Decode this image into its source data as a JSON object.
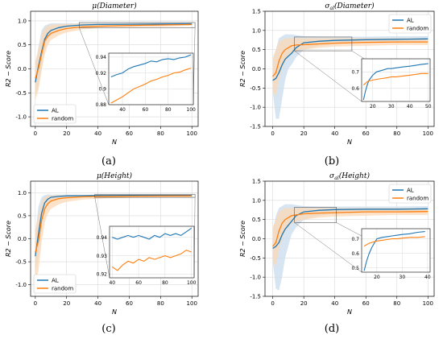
{
  "colors": {
    "al": "#1f77b4",
    "random": "#ff7f0e",
    "al_band": "#c9dcee",
    "random_band": "#fbd8b6",
    "grid": "#d9d9d9"
  },
  "panels": [
    {
      "letter": "(a)"
    },
    {
      "letter": "(b)"
    },
    {
      "letter": "(c)"
    },
    {
      "letter": "(d)"
    }
  ],
  "chart_data": [
    {
      "type": "line",
      "title": "μ(Diameter)",
      "xlabel": "N",
      "ylabel": "R2 − Score",
      "xlim": [
        -3,
        104
      ],
      "ylim": [
        -1.2,
        1.2
      ],
      "xticks": [
        0,
        20,
        40,
        60,
        80,
        100
      ],
      "yticks": [
        -1.0,
        -0.5,
        0.0,
        0.5,
        1.0
      ],
      "grid": true,
      "legend": "lower-left",
      "series": [
        {
          "name": "AL",
          "x": [
            0,
            2,
            4,
            6,
            8,
            10,
            15,
            20,
            30,
            40,
            60,
            80,
            100
          ],
          "y": [
            -0.28,
            0.05,
            0.35,
            0.62,
            0.74,
            0.8,
            0.86,
            0.89,
            0.915,
            0.925,
            0.93,
            0.935,
            0.94
          ],
          "lo": [
            -0.55,
            -0.35,
            0.0,
            0.4,
            0.6,
            0.7,
            0.82,
            0.87,
            0.9,
            0.91,
            0.92,
            0.925,
            0.93
          ],
          "hi": [
            0.1,
            0.45,
            0.8,
            0.9,
            0.93,
            0.95,
            0.95,
            0.95,
            0.95,
            0.95,
            0.95,
            0.955,
            0.955
          ]
        },
        {
          "name": "random",
          "x": [
            0,
            2,
            4,
            6,
            8,
            10,
            15,
            20,
            30,
            40,
            60,
            80,
            100
          ],
          "y": [
            -0.2,
            0.0,
            0.3,
            0.58,
            0.68,
            0.74,
            0.8,
            0.84,
            0.875,
            0.89,
            0.905,
            0.915,
            0.925
          ],
          "lo": [
            -0.65,
            -0.45,
            -0.05,
            0.3,
            0.5,
            0.6,
            0.7,
            0.76,
            0.82,
            0.85,
            0.87,
            0.88,
            0.9
          ],
          "hi": [
            0.15,
            0.4,
            0.7,
            0.85,
            0.9,
            0.92,
            0.93,
            0.94,
            0.94,
            0.945,
            0.95,
            0.95,
            0.95
          ]
        }
      ],
      "inset": {
        "xlim": [
          28,
          102
        ],
        "ylim": [
          0.88,
          0.945
        ],
        "xticks": [
          40,
          60,
          80,
          100
        ],
        "yticks": [
          0.88,
          0.9,
          0.92,
          0.94
        ],
        "series": [
          {
            "name": "AL",
            "x": [
              30,
              35,
              40,
              45,
              50,
              55,
              60,
              65,
              70,
              75,
              80,
              85,
              90,
              95,
              100
            ],
            "y": [
              0.915,
              0.918,
              0.92,
              0.925,
              0.928,
              0.93,
              0.932,
              0.935,
              0.934,
              0.937,
              0.938,
              0.937,
              0.939,
              0.94,
              0.943
            ]
          },
          {
            "name": "random",
            "x": [
              30,
              35,
              40,
              45,
              50,
              55,
              60,
              65,
              70,
              75,
              80,
              85,
              90,
              95,
              100
            ],
            "y": [
              0.882,
              0.886,
              0.89,
              0.895,
              0.9,
              0.903,
              0.906,
              0.91,
              0.912,
              0.915,
              0.917,
              0.92,
              0.921,
              0.924,
              0.926
            ]
          }
        ]
      }
    },
    {
      "type": "line",
      "title": "σ_al(Diameter)",
      "xlabel": "N",
      "ylabel": "R2 − Score",
      "xlim": [
        -5,
        104
      ],
      "ylim": [
        -1.5,
        1.5
      ],
      "xticks": [
        0,
        20,
        40,
        60,
        80,
        100
      ],
      "yticks": [
        -1.5,
        -1.0,
        -0.5,
        0.0,
        0.5,
        1.0,
        1.5
      ],
      "grid": true,
      "legend": "top-right",
      "series": [
        {
          "name": "AL",
          "x": [
            0,
            2,
            4,
            6,
            8,
            10,
            12,
            15,
            20,
            30,
            40,
            60,
            80,
            100
          ],
          "y": [
            -0.3,
            -0.25,
            -0.1,
            0.1,
            0.25,
            0.33,
            0.4,
            0.55,
            0.68,
            0.72,
            0.74,
            0.76,
            0.77,
            0.78
          ],
          "lo": [
            -0.6,
            -1.3,
            -1.3,
            -0.8,
            -0.3,
            0.0,
            0.1,
            0.3,
            0.5,
            0.6,
            0.65,
            0.68,
            0.7,
            0.72
          ],
          "hi": [
            0.2,
            0.5,
            0.8,
            0.85,
            0.9,
            0.9,
            0.9,
            0.88,
            0.85,
            0.84,
            0.84,
            0.84,
            0.85,
            0.85
          ]
        },
        {
          "name": "random",
          "x": [
            0,
            2,
            4,
            6,
            8,
            10,
            12,
            15,
            20,
            30,
            40,
            60,
            80,
            100
          ],
          "y": [
            -0.2,
            -0.1,
            0.2,
            0.4,
            0.5,
            0.55,
            0.6,
            0.62,
            0.63,
            0.65,
            0.67,
            0.69,
            0.7,
            0.7
          ],
          "lo": [
            -0.6,
            -0.7,
            -0.3,
            0.0,
            0.2,
            0.3,
            0.4,
            0.45,
            0.5,
            0.55,
            0.58,
            0.6,
            0.62,
            0.62
          ],
          "hi": [
            0.3,
            0.5,
            0.7,
            0.75,
            0.8,
            0.8,
            0.8,
            0.8,
            0.8,
            0.8,
            0.8,
            0.8,
            0.8,
            0.8
          ]
        }
      ],
      "inset": {
        "xlim": [
          14,
          51
        ],
        "ylim": [
          0.52,
          0.78
        ],
        "xticks": [
          20,
          30,
          40,
          50
        ],
        "yticks": [
          0.6,
          0.7
        ],
        "series": [
          {
            "name": "AL",
            "x": [
              15,
              16,
              17,
              18,
              20,
              22,
              25,
              28,
              30,
              33,
              36,
              40,
              43,
              46,
              50
            ],
            "y": [
              0.53,
              0.58,
              0.62,
              0.65,
              0.68,
              0.7,
              0.71,
              0.72,
              0.72,
              0.725,
              0.73,
              0.735,
              0.74,
              0.745,
              0.75
            ]
          },
          {
            "name": "random",
            "x": [
              15,
              16,
              17,
              18,
              20,
              22,
              25,
              28,
              30,
              33,
              36,
              40,
              43,
              46,
              50
            ],
            "y": [
              0.62,
              0.63,
              0.64,
              0.645,
              0.65,
              0.655,
              0.66,
              0.665,
              0.67,
              0.67,
              0.675,
              0.68,
              0.685,
              0.69,
              0.69
            ]
          }
        ]
      }
    },
    {
      "type": "line",
      "title": "μ(Height)",
      "xlabel": "N",
      "ylabel": "R2 − Score",
      "xlim": [
        -3,
        104
      ],
      "ylim": [
        -1.25,
        1.25
      ],
      "xticks": [
        0,
        20,
        40,
        60,
        80,
        100
      ],
      "yticks": [
        -1.0,
        -0.5,
        0.0,
        0.5,
        1.0
      ],
      "grid": true,
      "legend": "lower-left",
      "series": [
        {
          "name": "AL",
          "x": [
            0,
            2,
            4,
            6,
            8,
            10,
            15,
            20,
            30,
            40,
            60,
            80,
            100
          ],
          "y": [
            -0.38,
            0.1,
            0.55,
            0.78,
            0.86,
            0.9,
            0.92,
            0.93,
            0.935,
            0.938,
            0.94,
            0.94,
            0.942
          ],
          "lo": [
            -0.7,
            -0.4,
            0.2,
            0.6,
            0.75,
            0.82,
            0.88,
            0.9,
            0.91,
            0.92,
            0.925,
            0.93,
            0.93
          ],
          "hi": [
            0.1,
            0.7,
            0.9,
            0.95,
            0.96,
            0.96,
            0.96,
            0.96,
            0.955,
            0.955,
            0.955,
            0.955,
            0.955
          ]
        },
        {
          "name": "random",
          "x": [
            0,
            2,
            4,
            6,
            8,
            10,
            15,
            20,
            30,
            40,
            60,
            80,
            100
          ],
          "y": [
            -0.3,
            -0.05,
            0.4,
            0.65,
            0.76,
            0.82,
            0.87,
            0.89,
            0.91,
            0.92,
            0.925,
            0.928,
            0.93
          ],
          "lo": [
            -1.0,
            -0.7,
            -0.1,
            0.35,
            0.55,
            0.65,
            0.75,
            0.8,
            0.85,
            0.87,
            0.89,
            0.9,
            0.91
          ],
          "hi": [
            0.2,
            0.5,
            0.8,
            0.9,
            0.93,
            0.94,
            0.95,
            0.95,
            0.95,
            0.95,
            0.95,
            0.95,
            0.95
          ]
        }
      ],
      "inset": {
        "xlim": [
          38,
          102
        ],
        "ylim": [
          0.918,
          0.946
        ],
        "xticks": [
          40,
          60,
          80,
          100
        ],
        "yticks": [
          0.92,
          0.93,
          0.94
        ],
        "series": [
          {
            "name": "AL",
            "x": [
              40,
              44,
              48,
              52,
              56,
              60,
              64,
              68,
              72,
              76,
              80,
              84,
              88,
              92,
              96,
              100
            ],
            "y": [
              0.94,
              0.939,
              0.94,
              0.941,
              0.94,
              0.941,
              0.94,
              0.939,
              0.941,
              0.94,
              0.942,
              0.941,
              0.942,
              0.941,
              0.943,
              0.945
            ]
          },
          {
            "name": "random",
            "x": [
              40,
              44,
              48,
              52,
              56,
              60,
              64,
              68,
              72,
              76,
              80,
              84,
              88,
              92,
              96,
              100
            ],
            "y": [
              0.924,
              0.922,
              0.925,
              0.927,
              0.926,
              0.928,
              0.927,
              0.929,
              0.928,
              0.929,
              0.93,
              0.929,
              0.93,
              0.931,
              0.933,
              0.932
            ]
          }
        ]
      }
    },
    {
      "type": "line",
      "title": "σ_al(Height)",
      "xlabel": "N",
      "ylabel": "R2 − Score",
      "xlim": [
        -5,
        104
      ],
      "ylim": [
        -1.5,
        1.5
      ],
      "xticks": [
        0,
        20,
        40,
        60,
        80,
        100
      ],
      "yticks": [
        -1.5,
        -1.0,
        -0.5,
        0.0,
        0.5,
        1.0,
        1.5
      ],
      "grid": true,
      "legend": "top-right",
      "series": [
        {
          "name": "AL",
          "x": [
            0,
            2,
            4,
            6,
            8,
            10,
            12,
            15,
            20,
            30,
            40,
            60,
            80,
            100
          ],
          "y": [
            -0.25,
            -0.2,
            -0.1,
            0.1,
            0.25,
            0.35,
            0.45,
            0.6,
            0.7,
            0.74,
            0.76,
            0.77,
            0.77,
            0.78
          ],
          "lo": [
            -0.6,
            -1.3,
            -1.35,
            -1.0,
            -0.5,
            -0.2,
            0.1,
            0.3,
            0.5,
            0.6,
            0.65,
            0.68,
            0.7,
            0.7
          ],
          "hi": [
            0.2,
            0.6,
            0.8,
            0.85,
            0.9,
            0.9,
            0.9,
            0.88,
            0.85,
            0.84,
            0.84,
            0.84,
            0.84,
            0.85
          ]
        },
        {
          "name": "random",
          "x": [
            0,
            2,
            4,
            6,
            8,
            10,
            12,
            15,
            20,
            30,
            40,
            60,
            80,
            100
          ],
          "y": [
            -0.2,
            -0.1,
            0.2,
            0.4,
            0.5,
            0.55,
            0.6,
            0.62,
            0.65,
            0.67,
            0.68,
            0.7,
            0.7,
            0.71
          ],
          "lo": [
            -0.6,
            -0.7,
            -0.3,
            0.0,
            0.2,
            0.3,
            0.4,
            0.45,
            0.5,
            0.55,
            0.58,
            0.6,
            0.62,
            0.62
          ],
          "hi": [
            0.3,
            0.5,
            0.7,
            0.75,
            0.8,
            0.8,
            0.8,
            0.8,
            0.8,
            0.8,
            0.8,
            0.8,
            0.8,
            0.8
          ]
        }
      ],
      "inset": {
        "xlim": [
          14,
          41
        ],
        "ylim": [
          0.47,
          0.77
        ],
        "xticks": [
          20,
          30,
          40
        ],
        "yticks": [
          0.5,
          0.6,
          0.7
        ],
        "series": [
          {
            "name": "AL",
            "x": [
              15,
              16,
              17,
              18,
              19,
              20,
              22,
              24,
              26,
              28,
              30,
              33,
              36,
              39
            ],
            "y": [
              0.48,
              0.55,
              0.6,
              0.64,
              0.67,
              0.7,
              0.71,
              0.715,
              0.72,
              0.725,
              0.73,
              0.735,
              0.745,
              0.75
            ]
          },
          {
            "name": "random",
            "x": [
              15,
              16,
              17,
              18,
              19,
              20,
              22,
              24,
              26,
              28,
              30,
              33,
              36,
              39
            ],
            "y": [
              0.65,
              0.66,
              0.67,
              0.675,
              0.68,
              0.685,
              0.69,
              0.695,
              0.7,
              0.7,
              0.705,
              0.71,
              0.71,
              0.715
            ]
          }
        ]
      }
    }
  ]
}
